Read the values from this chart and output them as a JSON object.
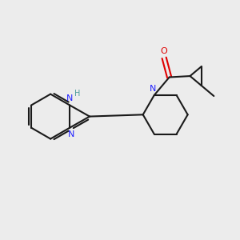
{
  "bg_color": "#ececec",
  "bond_color": "#1a1a1a",
  "n_color": "#2020ff",
  "o_color": "#e00000",
  "h_color": "#4a9a9a",
  "line_width": 1.5,
  "fig_width": 3.0,
  "fig_height": 3.0,
  "dpi": 100,
  "xlim": [
    0,
    10
  ],
  "ylim": [
    0,
    10
  ]
}
